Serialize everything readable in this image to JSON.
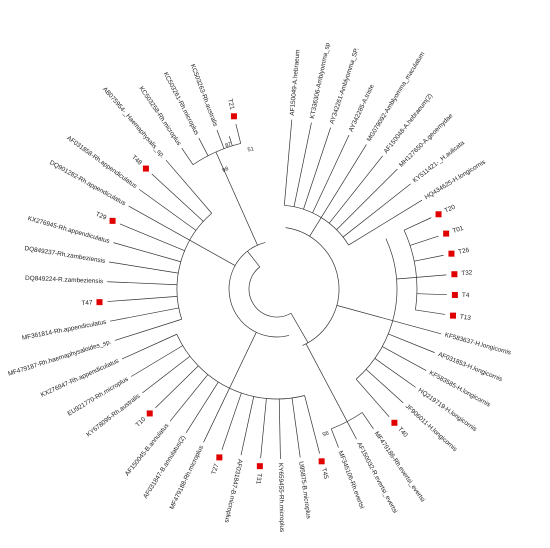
{
  "tree": {
    "marker_color": "#e00000",
    "branch_color": "#333333",
    "tips": [
      {
        "label": "AF150049-A.hebraeum",
        "marked": false,
        "dir": 1
      },
      {
        "label": "KT336306-Amblyomma_sp",
        "marked": false,
        "dir": 1
      },
      {
        "label": "AY342261-Amblyomma_SP.",
        "marked": false,
        "dir": 1
      },
      {
        "label": "AY342285-A.triste",
        "marked": false,
        "dir": 1
      },
      {
        "label": "MG079092-Amblyomma_maculatum",
        "marked": false,
        "dir": 1
      },
      {
        "label": "AF150048-A.hebraeum(2)",
        "marked": false,
        "dir": 1
      },
      {
        "label": "MH127650-A.geoemydae",
        "marked": false,
        "dir": 1
      },
      {
        "label": "KY511421-_H.aulicata",
        "marked": false,
        "dir": 1
      },
      {
        "label": "HQ434625-H.longicornis",
        "marked": false,
        "dir": 1
      },
      {
        "label": "T20",
        "marked": true,
        "dir": 1
      },
      {
        "label": "T01",
        "marked": true,
        "dir": 1
      },
      {
        "label": "T26",
        "marked": true,
        "dir": 1
      },
      {
        "label": "T32",
        "marked": true,
        "dir": 1
      },
      {
        "label": "T4",
        "marked": true,
        "dir": 1
      },
      {
        "label": "T13",
        "marked": true,
        "dir": 1
      },
      {
        "label": "KF583637-H.longicornis",
        "marked": false,
        "dir": 1
      },
      {
        "label": "AF031853-H.longicornis",
        "marked": false,
        "dir": 1
      },
      {
        "label": "KF583585-H.longicornis",
        "marked": false,
        "dir": 1
      },
      {
        "label": "HQ219719-H.longicornis",
        "marked": false,
        "dir": 1
      },
      {
        "label": "JF906011-H.longicornis",
        "marked": false,
        "dir": 1
      },
      {
        "label": "T40",
        "marked": true,
        "dir": 1
      },
      {
        "label": "MF479186-Rh.evertsi_evertsi",
        "marked": false,
        "dir": 1
      },
      {
        "label": "AF150032-R.evertsi_evertsi",
        "marked": false,
        "dir": 1
      },
      {
        "label": "MF345106-Rh.evertsi",
        "marked": false,
        "dir": 1
      },
      {
        "label": "T45",
        "marked": true,
        "dir": 1
      },
      {
        "label": "U95875-B.microplus",
        "marked": false,
        "dir": 1
      },
      {
        "label": "KY659455-Rh.microplus",
        "marked": false,
        "dir": 1
      },
      {
        "label": "T31",
        "marked": true,
        "dir": 1
      },
      {
        "label": "AF031847-B.microplus",
        "marked": false,
        "dir": 1
      },
      {
        "label": "T27",
        "marked": true,
        "dir": -1
      },
      {
        "label": "MF479188-Rh.microplus",
        "marked": false,
        "dir": -1
      },
      {
        "label": "AF031847-B.annulatus(2)",
        "marked": false,
        "dir": -1
      },
      {
        "label": "AF150045-B.annulatus",
        "marked": false,
        "dir": -1
      },
      {
        "label": "T10",
        "marked": true,
        "dir": -1
      },
      {
        "label": "KY678095-Rh.australis",
        "marked": false,
        "dir": -1
      },
      {
        "label": "EU921770-Rh.microplus",
        "marked": false,
        "dir": -1
      },
      {
        "label": "KX276947-Rh.appendiculatus",
        "marked": false,
        "dir": -1
      },
      {
        "label": "MF479187-Rh.haemaphysaloides_sp.",
        "marked": false,
        "dir": -1
      },
      {
        "label": "MF361814-Rh.appendiculatus",
        "marked": false,
        "dir": -1
      },
      {
        "label": "T47",
        "marked": true,
        "dir": -1
      },
      {
        "label": "DQ849224-R.zambeziensis",
        "marked": false,
        "dir": -1
      },
      {
        "label": "DQ849237-Rh.zambeziensis",
        "marked": false,
        "dir": -1
      },
      {
        "label": "KX276945-Rh.appendiculatus",
        "marked": false,
        "dir": -1
      },
      {
        "label": "T29",
        "marked": true,
        "dir": -1
      },
      {
        "label": "DQ901282-Rh.appendiculatus",
        "marked": false,
        "dir": -1
      },
      {
        "label": "AF031858-Rh.appendiculatus",
        "marked": false,
        "dir": -1
      },
      {
        "label": "T48",
        "marked": true,
        "dir": -1
      },
      {
        "label": "AB075954-_Haemaphysalis_sp.",
        "marked": false,
        "dir": -1
      },
      {
        "label": "KC503258-Rh.microplus",
        "marked": false,
        "dir": -1
      },
      {
        "label": "KC503261-Rh.microplus",
        "marked": false,
        "dir": -1
      },
      {
        "label": "KC503263-Rh.australis",
        "marked": false,
        "dir": -1
      },
      {
        "label": "T21",
        "marked": true,
        "dir": -1
      }
    ],
    "bootstrap": [
      "51",
      "87",
      "98",
      "95"
    ]
  }
}
